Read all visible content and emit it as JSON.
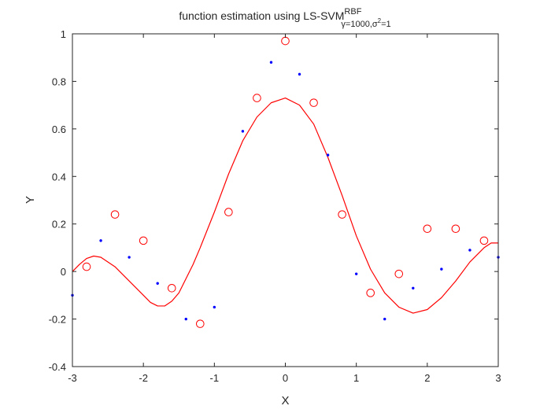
{
  "chart_data": {
    "type": "scatter",
    "title": {
      "main": "function estimation using  LS-SVM",
      "superscript": "RBF",
      "subscript_part1": "γ=1000,",
      "subscript_sigma": "σ",
      "subscript_sigma_power": "2",
      "subscript_part2": "=1"
    },
    "xlabel": "X",
    "ylabel": "Y",
    "xlim": [
      -3,
      3
    ],
    "ylim": [
      -0.4,
      1
    ],
    "xticks": [
      -3,
      -2,
      -1,
      0,
      1,
      2,
      3
    ],
    "yticks": [
      -0.4,
      -0.2,
      0,
      0.2,
      0.4,
      0.6,
      0.8,
      1
    ],
    "grid": false,
    "legend": null,
    "colors": {
      "circles": "#ff0000",
      "dots": "#0000ff",
      "curve": "#ff0000",
      "axes": "#262626"
    },
    "series": [
      {
        "style": "circle-markers",
        "points": [
          [
            -2.8,
            0.02
          ],
          [
            -2.4,
            0.24
          ],
          [
            -2.0,
            0.13
          ],
          [
            -1.6,
            -0.07
          ],
          [
            -1.2,
            -0.22
          ],
          [
            -0.8,
            0.25
          ],
          [
            -0.4,
            0.73
          ],
          [
            0.0,
            0.97
          ],
          [
            0.4,
            0.71
          ],
          [
            0.8,
            0.24
          ],
          [
            1.2,
            -0.09
          ],
          [
            1.6,
            -0.01
          ],
          [
            2.0,
            0.18
          ],
          [
            2.4,
            0.18
          ],
          [
            2.8,
            0.13
          ]
        ]
      },
      {
        "style": "dot-markers",
        "points": [
          [
            -3.0,
            -0.1
          ],
          [
            -2.6,
            0.13
          ],
          [
            -2.2,
            0.06
          ],
          [
            -1.8,
            -0.05
          ],
          [
            -1.4,
            -0.2
          ],
          [
            -1.0,
            -0.15
          ],
          [
            -0.6,
            0.59
          ],
          [
            -0.2,
            0.88
          ],
          [
            0.2,
            0.83
          ],
          [
            0.6,
            0.49
          ],
          [
            1.0,
            -0.01
          ],
          [
            1.4,
            -0.2
          ],
          [
            1.8,
            -0.07
          ],
          [
            2.2,
            0.01
          ],
          [
            2.6,
            0.09
          ],
          [
            3.0,
            0.06
          ]
        ]
      },
      {
        "style": "line",
        "points": [
          [
            -3.0,
            0.0
          ],
          [
            -2.9,
            0.03
          ],
          [
            -2.8,
            0.055
          ],
          [
            -2.7,
            0.065
          ],
          [
            -2.6,
            0.06
          ],
          [
            -2.4,
            0.02
          ],
          [
            -2.2,
            -0.04
          ],
          [
            -2.0,
            -0.1
          ],
          [
            -1.9,
            -0.13
          ],
          [
            -1.8,
            -0.145
          ],
          [
            -1.7,
            -0.145
          ],
          [
            -1.6,
            -0.125
          ],
          [
            -1.5,
            -0.09
          ],
          [
            -1.4,
            -0.03
          ],
          [
            -1.3,
            0.03
          ],
          [
            -1.2,
            0.1
          ],
          [
            -1.0,
            0.25
          ],
          [
            -0.8,
            0.41
          ],
          [
            -0.6,
            0.55
          ],
          [
            -0.4,
            0.65
          ],
          [
            -0.2,
            0.71
          ],
          [
            0.0,
            0.73
          ],
          [
            0.2,
            0.7
          ],
          [
            0.4,
            0.62
          ],
          [
            0.6,
            0.48
          ],
          [
            0.8,
            0.32
          ],
          [
            1.0,
            0.15
          ],
          [
            1.2,
            0.01
          ],
          [
            1.4,
            -0.09
          ],
          [
            1.6,
            -0.15
          ],
          [
            1.8,
            -0.175
          ],
          [
            2.0,
            -0.16
          ],
          [
            2.2,
            -0.11
          ],
          [
            2.4,
            -0.04
          ],
          [
            2.6,
            0.04
          ],
          [
            2.8,
            0.1
          ],
          [
            2.9,
            0.12
          ],
          [
            3.0,
            0.12
          ]
        ]
      }
    ]
  }
}
